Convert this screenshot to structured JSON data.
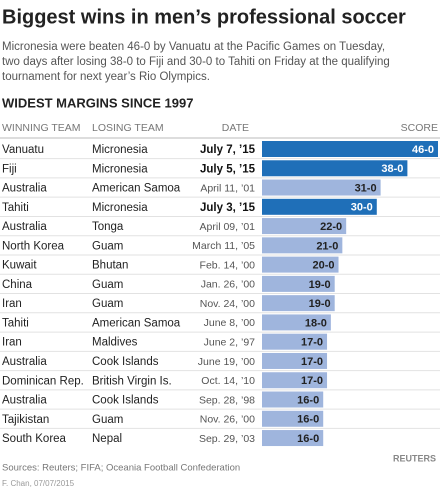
{
  "chart_data": {
    "type": "bar",
    "title": "Biggest wins in men’s professional soccer",
    "subtitle": [
      "Micronesia were beaten 46-0 by Vanuatu at the Pacific Games on Tuesday,",
      "two days after losing 38-0 to Fiji and 30-0 to Tahiti on Friday at the qualifying",
      "tournament for next year’s Rio Olympics."
    ],
    "heading": "WIDEST MARGINS SINCE 1997",
    "column_headers": [
      "WINNING TEAM",
      "LOSING TEAM",
      "DATE",
      "SCORE"
    ],
    "winning_team": [
      "Vanuatu",
      "Fiji",
      "Australia",
      "Tahiti",
      "Australia",
      "North Korea",
      "Kuwait",
      "China",
      "Iran",
      "Tahiti",
      "Iran",
      "Australia",
      "Dominican Rep.",
      "Australia",
      "Tajikistan",
      "South Korea"
    ],
    "losing_team": [
      "Micronesia",
      "Micronesia",
      "American Samoa",
      "Micronesia",
      "Tonga",
      "Guam",
      "Bhutan",
      "Guam",
      "Guam",
      "American Samoa",
      "Maldives",
      "Cook Islands",
      "British Virgin Is.",
      "Cook Islands",
      "Guam",
      "Nepal"
    ],
    "dates": [
      "July 7, ’15",
      "July 5, ’15",
      "April 11, ’01",
      "July 3, ’15",
      "April 09, ’01",
      "March 11, ’05",
      "Feb. 14, ’00",
      "Jan. 26, ’00",
      "Nov. 24, ’00",
      "June 8, ’00",
      "June 2, ’97",
      "June 19, ’00",
      "Oct. 14, ’10",
      "Sep. 28, ’98",
      "Nov. 26, ’00",
      "Sep. 29, ’03"
    ],
    "values": [
      46,
      38,
      31,
      30,
      22,
      21,
      20,
      19,
      19,
      18,
      17,
      17,
      17,
      16,
      16,
      16
    ],
    "value_labels": [
      "46-0",
      "38-0",
      "31-0",
      "30-0",
      "22-0",
      "21-0",
      "20-0",
      "19-0",
      "19-0",
      "18-0",
      "17-0",
      "17-0",
      "17-0",
      "16-0",
      "16-0",
      "16-0"
    ],
    "colors": [
      "#1f6fb8",
      "#1f6fb8",
      "#9fb5dd",
      "#1f6fb8",
      "#9fb5dd",
      "#9fb5dd",
      "#9fb5dd",
      "#9fb5dd",
      "#9fb5dd",
      "#9fb5dd",
      "#9fb5dd",
      "#9fb5dd",
      "#9fb5dd",
      "#9fb5dd",
      "#9fb5dd",
      "#9fb5dd"
    ],
    "xlim": [
      0,
      46
    ],
    "source": "Sources: Reuters; FIFA; Oceania Football Confederation",
    "credit": "F. Chan, 07/07/2015",
    "logo": "REUTERS"
  }
}
